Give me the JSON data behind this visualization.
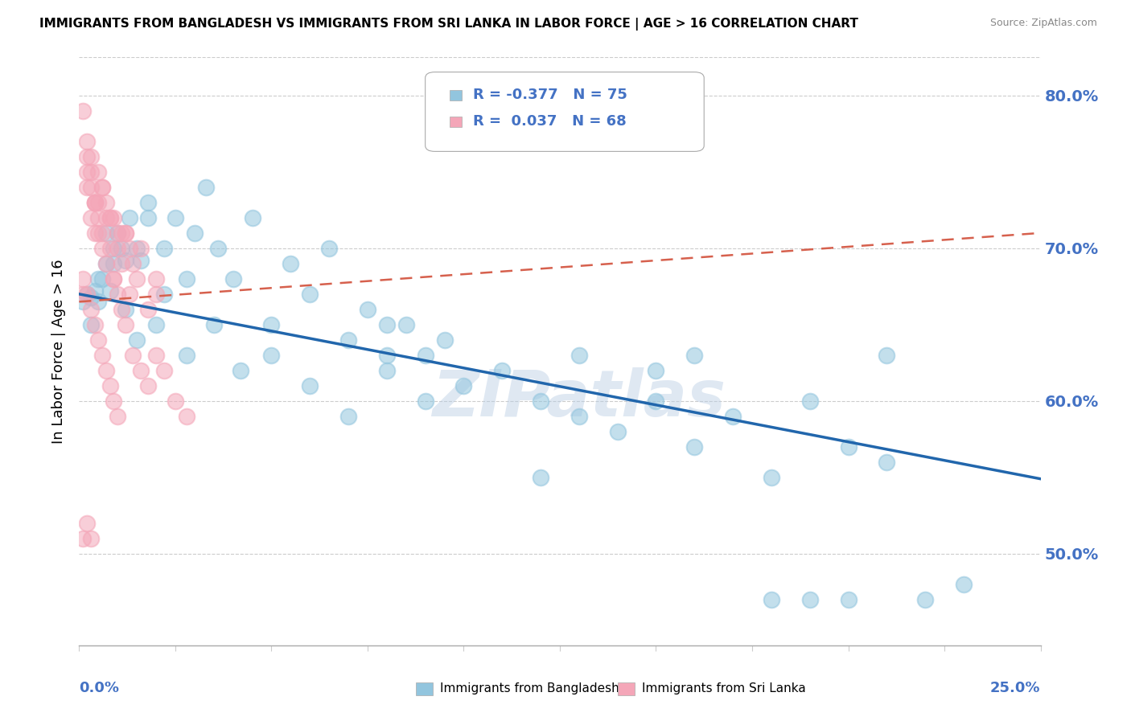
{
  "title": "IMMIGRANTS FROM BANGLADESH VS IMMIGRANTS FROM SRI LANKA IN LABOR FORCE | AGE > 16 CORRELATION CHART",
  "source": "Source: ZipAtlas.com",
  "ylabel": "In Labor Force | Age > 16",
  "xlim": [
    0.0,
    0.25
  ],
  "ylim": [
    0.44,
    0.825
  ],
  "yticks": [
    0.5,
    0.6,
    0.7,
    0.8
  ],
  "legend_r_bangladesh": "-0.377",
  "legend_n_bangladesh": "75",
  "legend_r_srilanka": "0.037",
  "legend_n_srilanka": "68",
  "color_bangladesh": "#92c5de",
  "color_srilanka": "#f4a6b8",
  "trendline_bangladesh_color": "#2166ac",
  "trendline_srilanka_color": "#d6604d",
  "watermark": "ZIPatlas",
  "bang_trend_x0": 0.0,
  "bang_trend_y0": 0.67,
  "bang_trend_x1": 0.25,
  "bang_trend_y1": 0.549,
  "sri_trend_x0": 0.0,
  "sri_trend_y0": 0.665,
  "sri_trend_x1": 0.25,
  "sri_trend_y1": 0.71,
  "bangladesh_x": [
    0.001,
    0.002,
    0.003,
    0.004,
    0.005,
    0.006,
    0.007,
    0.008,
    0.009,
    0.01,
    0.011,
    0.012,
    0.013,
    0.015,
    0.016,
    0.018,
    0.02,
    0.022,
    0.025,
    0.028,
    0.03,
    0.033,
    0.036,
    0.04,
    0.045,
    0.05,
    0.055,
    0.06,
    0.065,
    0.07,
    0.075,
    0.08,
    0.085,
    0.09,
    0.095,
    0.1,
    0.11,
    0.12,
    0.13,
    0.14,
    0.15,
    0.16,
    0.17,
    0.18,
    0.19,
    0.2,
    0.21,
    0.22,
    0.23,
    0.003,
    0.005,
    0.007,
    0.009,
    0.012,
    0.015,
    0.018,
    0.022,
    0.028,
    0.035,
    0.042,
    0.05,
    0.06,
    0.07,
    0.08,
    0.09,
    0.12,
    0.15,
    0.18,
    0.13,
    0.16,
    0.19,
    0.08,
    0.2,
    0.21
  ],
  "bangladesh_y": [
    0.665,
    0.67,
    0.668,
    0.672,
    0.665,
    0.68,
    0.69,
    0.672,
    0.7,
    0.71,
    0.7,
    0.692,
    0.72,
    0.7,
    0.692,
    0.73,
    0.65,
    0.7,
    0.72,
    0.68,
    0.71,
    0.74,
    0.7,
    0.68,
    0.72,
    0.65,
    0.69,
    0.67,
    0.7,
    0.64,
    0.66,
    0.63,
    0.65,
    0.63,
    0.64,
    0.61,
    0.62,
    0.6,
    0.59,
    0.58,
    0.6,
    0.57,
    0.59,
    0.55,
    0.6,
    0.57,
    0.56,
    0.47,
    0.48,
    0.65,
    0.68,
    0.71,
    0.69,
    0.66,
    0.64,
    0.72,
    0.67,
    0.63,
    0.65,
    0.62,
    0.63,
    0.61,
    0.59,
    0.62,
    0.6,
    0.55,
    0.62,
    0.47,
    0.63,
    0.63,
    0.47,
    0.65,
    0.47,
    0.63
  ],
  "srilanka_x": [
    0.001,
    0.002,
    0.003,
    0.004,
    0.005,
    0.006,
    0.007,
    0.008,
    0.009,
    0.01,
    0.011,
    0.012,
    0.013,
    0.014,
    0.015,
    0.016,
    0.018,
    0.02,
    0.002,
    0.003,
    0.004,
    0.005,
    0.006,
    0.007,
    0.008,
    0.009,
    0.01,
    0.011,
    0.012,
    0.014,
    0.016,
    0.018,
    0.02,
    0.022,
    0.025,
    0.028,
    0.001,
    0.002,
    0.003,
    0.004,
    0.005,
    0.006,
    0.007,
    0.008,
    0.009,
    0.01,
    0.011,
    0.012,
    0.013,
    0.002,
    0.003,
    0.004,
    0.005,
    0.006,
    0.001,
    0.002,
    0.003,
    0.004,
    0.005,
    0.006,
    0.007,
    0.008,
    0.009,
    0.01,
    0.02,
    0.001,
    0.002,
    0.003
  ],
  "srilanka_y": [
    0.67,
    0.74,
    0.72,
    0.71,
    0.73,
    0.7,
    0.69,
    0.72,
    0.68,
    0.7,
    0.69,
    0.71,
    0.67,
    0.69,
    0.68,
    0.7,
    0.66,
    0.67,
    0.77,
    0.75,
    0.73,
    0.71,
    0.74,
    0.72,
    0.7,
    0.68,
    0.67,
    0.66,
    0.65,
    0.63,
    0.62,
    0.61,
    0.63,
    0.62,
    0.6,
    0.59,
    0.79,
    0.76,
    0.76,
    0.73,
    0.75,
    0.74,
    0.73,
    0.72,
    0.72,
    0.71,
    0.71,
    0.71,
    0.7,
    0.75,
    0.74,
    0.73,
    0.72,
    0.71,
    0.68,
    0.67,
    0.66,
    0.65,
    0.64,
    0.63,
    0.62,
    0.61,
    0.6,
    0.59,
    0.68,
    0.51,
    0.52,
    0.51
  ]
}
